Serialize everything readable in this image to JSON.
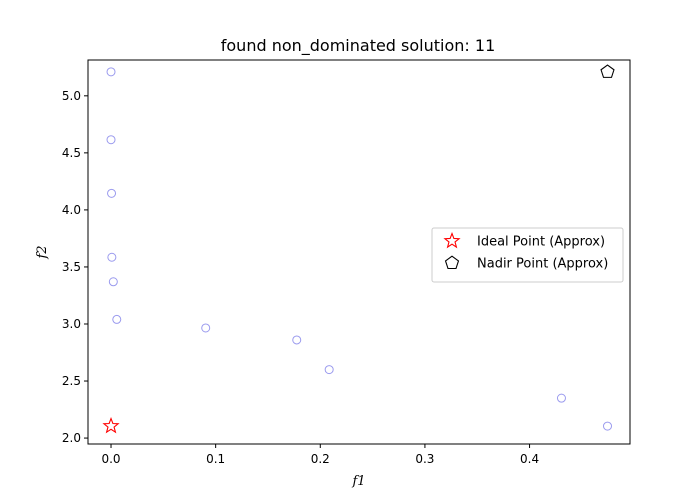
{
  "chart_data": {
    "type": "scatter",
    "title": "found non_dominated solution: 11",
    "xlabel": "f1",
    "ylabel": "f2",
    "xlim": [
      -0.022,
      0.496
    ],
    "ylim": [
      1.948,
      5.314
    ],
    "xticks": [
      0.0,
      0.1,
      0.2,
      0.3,
      0.4
    ],
    "xtick_labels": [
      "0.0",
      "0.1",
      "0.2",
      "0.3",
      "0.4"
    ],
    "yticks": [
      2.0,
      2.5,
      3.0,
      3.5,
      4.0,
      4.5,
      5.0
    ],
    "ytick_labels": [
      "2.0",
      "2.5",
      "3.0",
      "3.5",
      "4.0",
      "4.5",
      "5.0"
    ],
    "grid": false,
    "legend_position": "center-right",
    "series": [
      {
        "marker": "circle-hollow",
        "color": "#9a9aee",
        "points": [
          {
            "x": 0.0,
            "y": 5.21
          },
          {
            "x": 0.0,
            "y": 4.615
          },
          {
            "x": 0.0005,
            "y": 4.145
          },
          {
            "x": 0.0008,
            "y": 3.585
          },
          {
            "x": 0.0022,
            "y": 3.37
          },
          {
            "x": 0.0055,
            "y": 3.04
          },
          {
            "x": 0.0905,
            "y": 2.965
          },
          {
            "x": 0.1775,
            "y": 2.86
          },
          {
            "x": 0.2085,
            "y": 2.6
          },
          {
            "x": 0.4305,
            "y": 2.35
          },
          {
            "x": 0.4745,
            "y": 2.105
          }
        ]
      },
      {
        "name": "Ideal Point (Approx)",
        "marker": "star-hollow",
        "color": "#ff0000",
        "points": [
          {
            "x": 0.0,
            "y": 2.105
          }
        ]
      },
      {
        "name": "Nadir Point (Approx)",
        "marker": "pentagon-hollow",
        "color": "#000000",
        "points": [
          {
            "x": 0.4745,
            "y": 5.21
          }
        ]
      }
    ]
  }
}
